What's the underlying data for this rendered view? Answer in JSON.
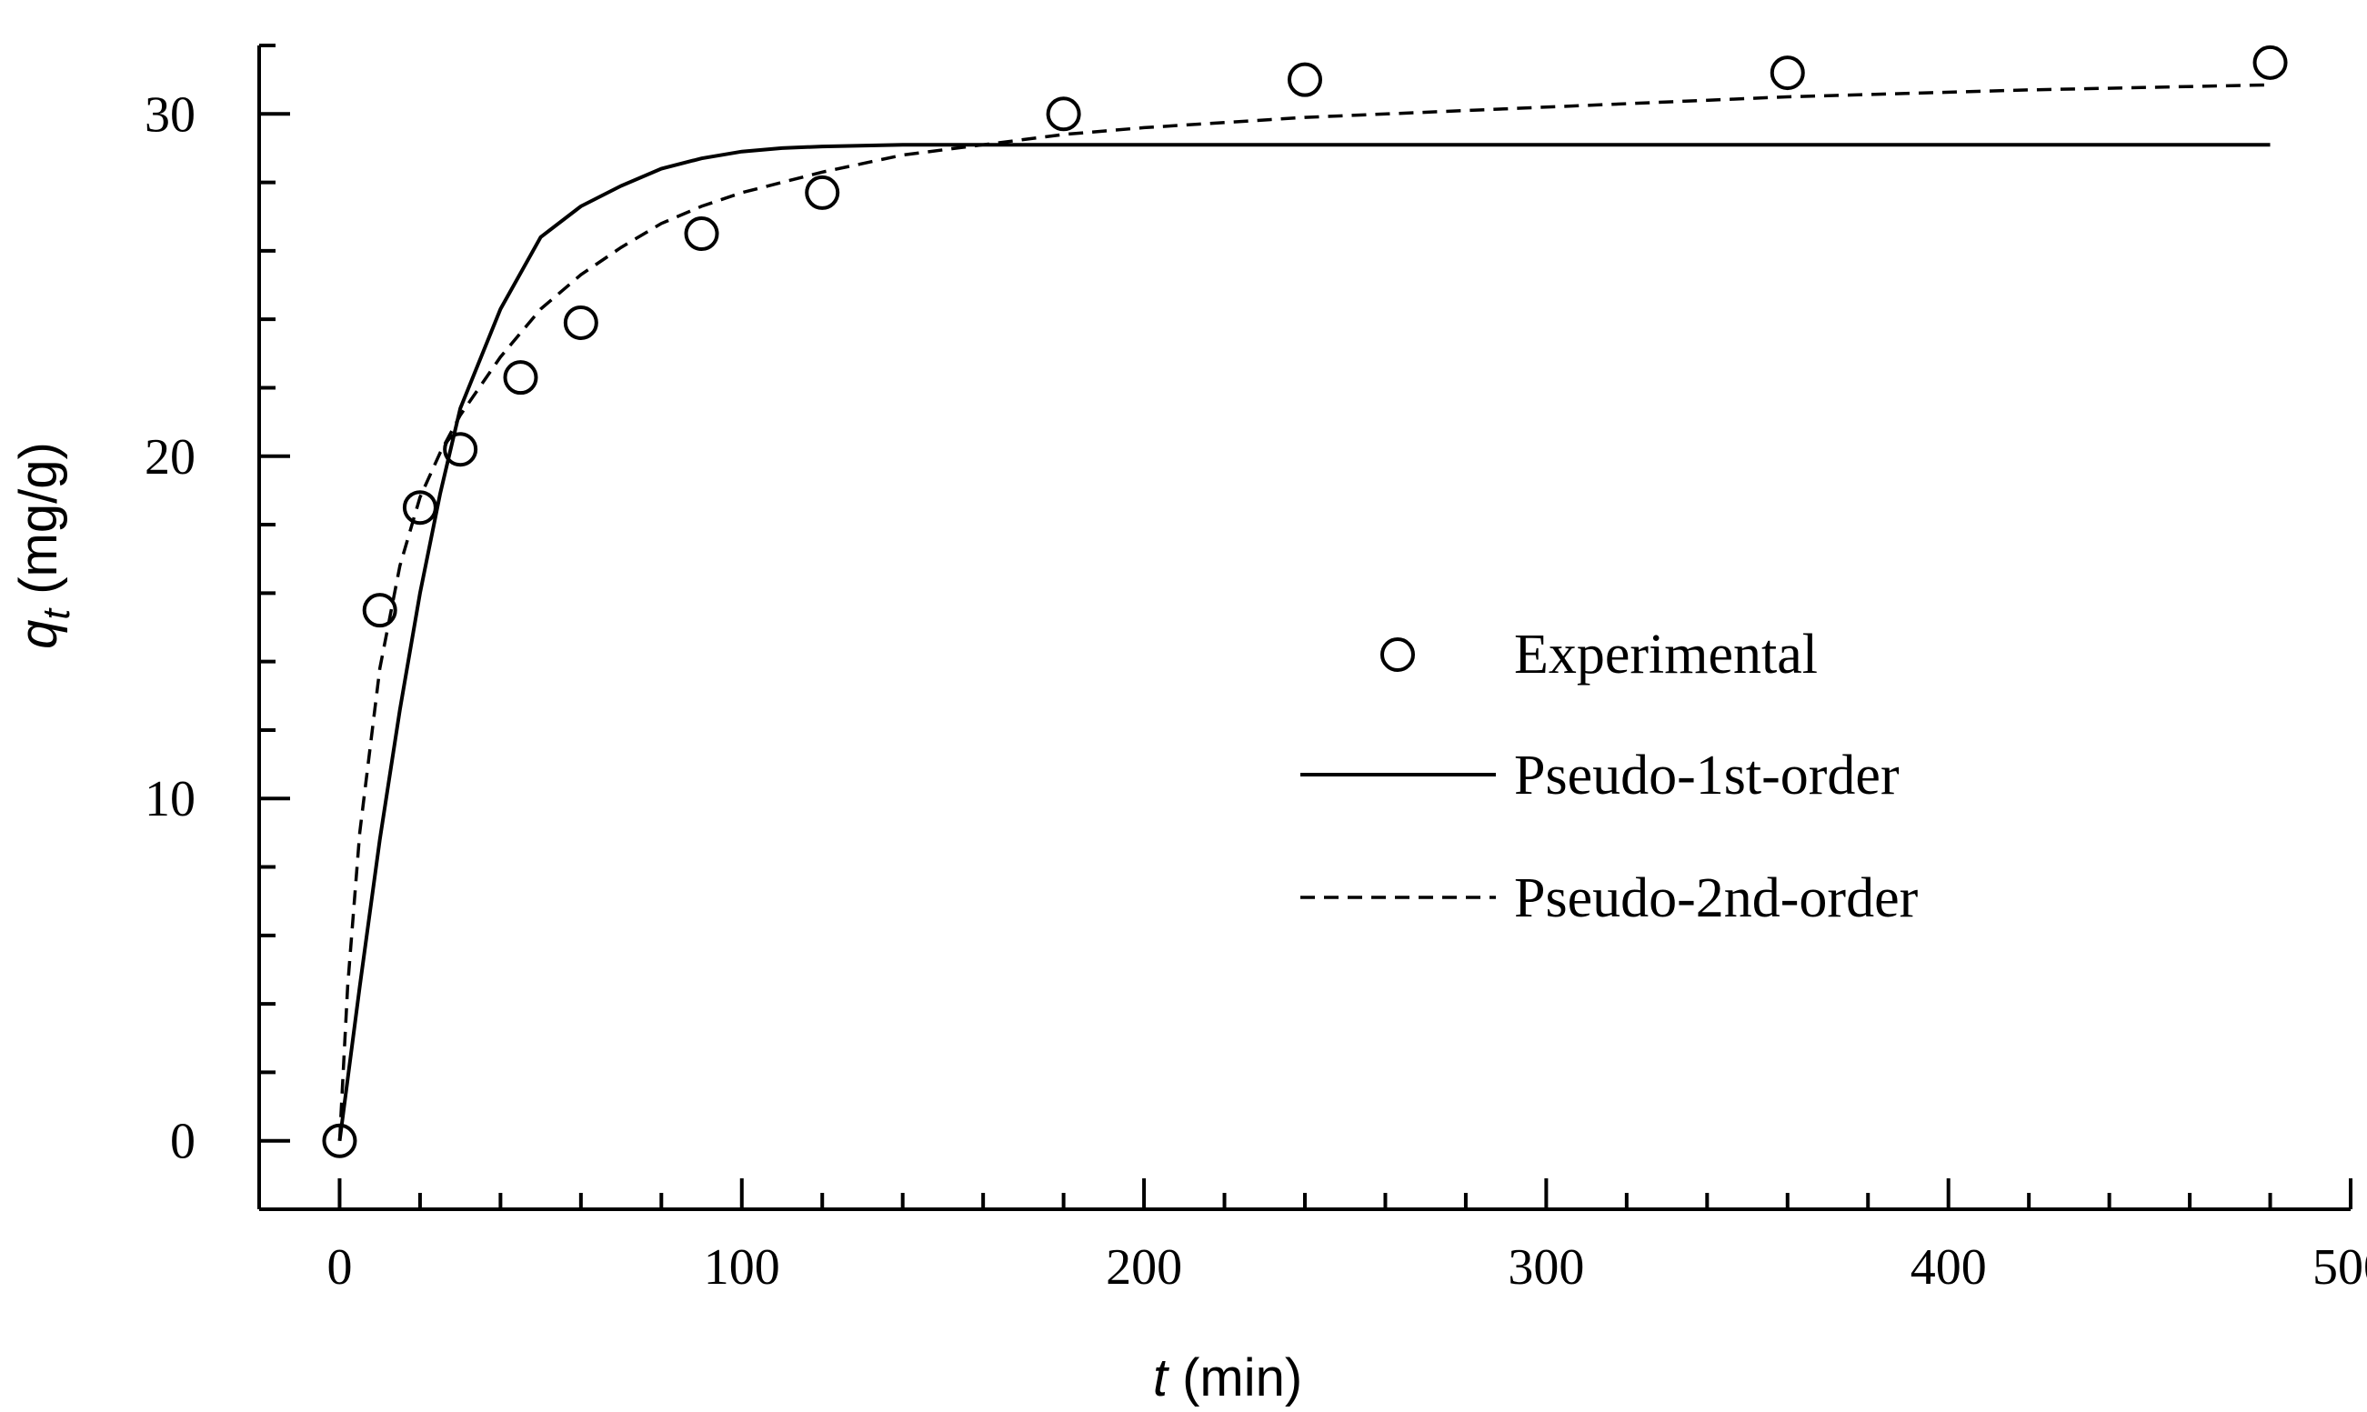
{
  "chart_data": {
    "type": "scatter",
    "title": "",
    "xlabel_var": "t",
    "xlabel_unit": " (min)",
    "ylabel_var": "q",
    "ylabel_sub": "t",
    "ylabel_unit": " (mg/g)",
    "xlim": [
      -20,
      500
    ],
    "ylim": [
      -2,
      32
    ],
    "x_ticks": [
      0,
      100,
      200,
      300,
      400,
      500
    ],
    "x_tick_labels": [
      "0",
      "100",
      "200",
      "300",
      "400",
      "500"
    ],
    "x_minor_step": 20,
    "y_ticks": [
      0,
      10,
      20,
      30
    ],
    "y_tick_labels": [
      "0",
      "10",
      "20",
      "30"
    ],
    "y_minor_step": 2,
    "legend_position": "center-right",
    "series": [
      {
        "name": "Experimental",
        "kind": "points",
        "x": [
          0,
          10,
          20,
          30,
          45,
          60,
          90,
          120,
          180,
          240,
          360,
          480
        ],
        "y": [
          0,
          15.5,
          18.5,
          20.2,
          22.3,
          23.9,
          26.5,
          27.7,
          30.0,
          31.0,
          31.2,
          31.5
        ]
      },
      {
        "name": "Pseudo-1st-order",
        "kind": "line",
        "x": [
          0,
          5,
          10,
          15,
          20,
          25,
          30,
          40,
          50,
          60,
          70,
          80,
          90,
          100,
          110,
          120,
          140,
          160,
          180,
          200,
          250,
          300,
          360,
          420,
          480
        ],
        "y": [
          0,
          4.5,
          8.8,
          12.6,
          16.0,
          18.9,
          21.4,
          24.3,
          26.4,
          27.3,
          27.9,
          28.4,
          28.7,
          28.9,
          29.0,
          29.05,
          29.1,
          29.1,
          29.1,
          29.1,
          29.1,
          29.1,
          29.1,
          29.1,
          29.1
        ]
      },
      {
        "name": "Pseudo-2nd-order",
        "kind": "line",
        "x": [
          0,
          2,
          5,
          10,
          15,
          20,
          25,
          30,
          40,
          50,
          60,
          70,
          80,
          90,
          100,
          120,
          140,
          160,
          180,
          200,
          240,
          300,
          360,
          420,
          480
        ],
        "y": [
          0,
          4.5,
          9.0,
          13.8,
          16.8,
          18.8,
          20.1,
          21.2,
          22.9,
          24.3,
          25.3,
          26.1,
          26.8,
          27.3,
          27.7,
          28.3,
          28.8,
          29.1,
          29.4,
          29.6,
          29.9,
          30.2,
          30.5,
          30.7,
          30.85
        ]
      }
    ]
  }
}
